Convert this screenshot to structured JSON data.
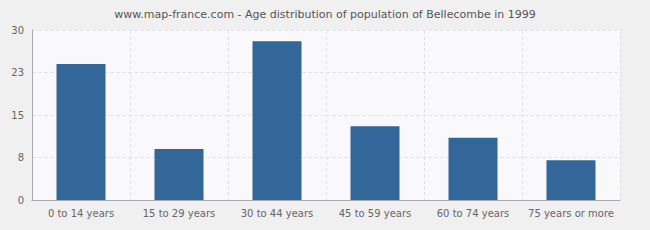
{
  "chart_data": {
    "type": "bar",
    "title": "www.map-france.com - Age distribution of population of Bellecombe in 1999",
    "categories": [
      "0 to 14 years",
      "15 to 29 years",
      "30 to 44 years",
      "45 to 59 years",
      "60 to 74 years",
      "75 years or more"
    ],
    "values": [
      24,
      9,
      28,
      13,
      11,
      7
    ],
    "color": "#336699",
    "ylim": [
      0,
      30
    ],
    "yticks": [
      0,
      {
        "value": 7.5,
        "label": "8"
      },
      15,
      {
        "value": 22.5,
        "label": "23"
      },
      30
    ],
    "grid": true
  }
}
